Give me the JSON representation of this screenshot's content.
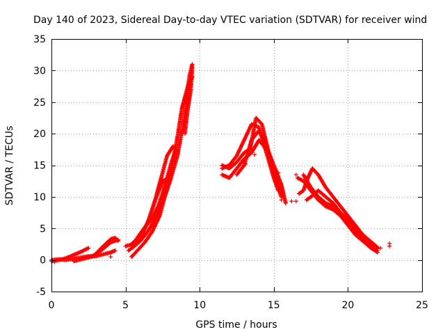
{
  "chart_data": {
    "type": "scatter",
    "title": "Day 140 of 2023, Sidereal Day-to-day VTEC variation (SDTVAR) for receiver wind",
    "xlabel": "GPS time / hours",
    "ylabel": "SDTVAR / TECUs",
    "xlim": [
      0,
      25
    ],
    "ylim": [
      -5,
      35
    ],
    "xticks": [
      "0",
      "5",
      "10",
      "15",
      "20",
      "25"
    ],
    "yticks": [
      "-5",
      "0",
      "5",
      "10",
      "15",
      "20",
      "25",
      "30",
      "35"
    ],
    "grid": true,
    "marker": "+",
    "series": [
      {
        "name": "SDTVAR",
        "color": "#ff0000",
        "tracks": [
          [
            [
              0.0,
              0.0
            ],
            [
              0.5,
              0.1
            ],
            [
              1.0,
              0.0
            ],
            [
              1.5,
              0.2
            ],
            [
              2.0,
              0.4
            ],
            [
              2.5,
              0.6
            ],
            [
              3.0,
              0.6
            ],
            [
              3.5,
              0.9
            ],
            [
              4.0,
              1.2
            ],
            [
              4.3,
              1.5
            ]
          ],
          [
            [
              0.0,
              -0.2
            ],
            [
              0.5,
              0.0
            ],
            [
              1.0,
              0.3
            ],
            [
              1.5,
              0.8
            ],
            [
              2.0,
              1.3
            ],
            [
              2.5,
              1.9
            ]
          ],
          [
            [
              1.5,
              -0.2
            ],
            [
              2.0,
              0.1
            ],
            [
              2.5,
              0.4
            ],
            [
              3.0,
              0.8
            ],
            [
              3.5,
              1.8
            ],
            [
              4.0,
              2.8
            ],
            [
              4.5,
              3.2
            ]
          ],
          [
            [
              2.7,
              0.5
            ],
            [
              3.0,
              1.0
            ],
            [
              3.5,
              2.2
            ],
            [
              4.0,
              3.3
            ],
            [
              4.3,
              3.5
            ],
            [
              4.5,
              3.0
            ]
          ],
          [
            [
              5.0,
              2.2
            ],
            [
              5.5,
              2.5
            ],
            [
              6.0,
              3.5
            ],
            [
              6.5,
              6.0
            ],
            [
              7.0,
              9.5
            ],
            [
              7.5,
              12.5
            ],
            [
              8.0,
              13.0
            ]
          ],
          [
            [
              5.2,
              1.5
            ],
            [
              5.5,
              2.0
            ],
            [
              6.0,
              3.0
            ],
            [
              6.5,
              4.5
            ],
            [
              7.0,
              6.5
            ],
            [
              7.5,
              9.0
            ],
            [
              8.0,
              12.5
            ],
            [
              8.5,
              16.5
            ],
            [
              9.0,
              23.0
            ],
            [
              9.3,
              29.0
            ],
            [
              9.5,
              31.0
            ]
          ],
          [
            [
              5.4,
              0.5
            ],
            [
              5.8,
              1.5
            ],
            [
              6.3,
              2.8
            ],
            [
              6.8,
              4.5
            ],
            [
              7.3,
              7.0
            ],
            [
              7.7,
              10.5
            ],
            [
              8.1,
              14.5
            ],
            [
              8.5,
              19.5
            ],
            [
              8.8,
              24.0
            ],
            [
              9.2,
              27.5
            ],
            [
              9.5,
              29.0
            ]
          ],
          [
            [
              5.8,
              3.0
            ],
            [
              6.2,
              4.5
            ],
            [
              6.6,
              6.5
            ],
            [
              7.0,
              9.5
            ],
            [
              7.4,
              13.0
            ],
            [
              7.8,
              16.5
            ],
            [
              8.2,
              18.0
            ]
          ],
          [
            [
              5.4,
              2.5
            ],
            [
              5.7,
              3.2
            ],
            [
              6.0,
              4.2
            ],
            [
              6.3,
              5.2
            ],
            [
              6.6,
              6.0
            ],
            [
              6.9,
              7.0
            ],
            [
              7.2,
              8.5
            ],
            [
              7.5,
              10.5
            ],
            [
              7.8,
              13.0
            ],
            [
              8.1,
              15.5
            ],
            [
              8.4,
              17.5
            ]
          ],
          [
            [
              9.0,
              20.0
            ],
            [
              9.2,
              24.0
            ],
            [
              9.4,
              27.0
            ],
            [
              9.5,
              30.5
            ]
          ],
          [
            [
              11.5,
              13.5
            ],
            [
              12.0,
              13.0
            ],
            [
              12.5,
              14.5
            ],
            [
              13.0,
              16.0
            ],
            [
              13.5,
              17.0
            ],
            [
              14.0,
              19.0
            ],
            [
              14.5,
              17.5
            ],
            [
              15.0,
              13.5
            ],
            [
              15.5,
              10.0
            ]
          ],
          [
            [
              11.5,
              14.5
            ],
            [
              12.0,
              15.0
            ],
            [
              12.5,
              16.5
            ],
            [
              13.0,
              19.0
            ],
            [
              13.5,
              21.5
            ],
            [
              14.0,
              21.0
            ],
            [
              14.5,
              17.0
            ],
            [
              15.0,
              13.0
            ],
            [
              15.3,
              11.0
            ]
          ],
          [
            [
              11.5,
              15.0
            ],
            [
              12.0,
              14.5
            ],
            [
              12.5,
              15.5
            ],
            [
              13.0,
              17.0
            ],
            [
              13.4,
              17.5
            ],
            [
              13.8,
              22.5
            ],
            [
              14.2,
              21.5
            ],
            [
              14.6,
              17.5
            ],
            [
              15.2,
              12.5
            ],
            [
              15.6,
              10.0
            ]
          ],
          [
            [
              12.5,
              13.5
            ],
            [
              13.0,
              15.0
            ],
            [
              13.5,
              19.0
            ],
            [
              14.0,
              20.5
            ],
            [
              14.5,
              18.0
            ],
            [
              15.0,
              15.0
            ],
            [
              15.5,
              12.0
            ],
            [
              15.8,
              9.0
            ]
          ],
          [
            [
              16.6,
              13.0
            ],
            [
              17.0,
              12.5
            ],
            [
              17.5,
              11.0
            ],
            [
              18.0,
              9.5
            ],
            [
              18.5,
              8.5
            ],
            [
              19.0,
              8.0
            ],
            [
              19.5,
              7.0
            ],
            [
              20.0,
              5.5
            ],
            [
              20.5,
              4.0
            ],
            [
              21.0,
              3.0
            ],
            [
              21.5,
              2.0
            ],
            [
              22.0,
              1.5
            ]
          ],
          [
            [
              16.7,
              10.5
            ],
            [
              17.0,
              11.0
            ],
            [
              17.3,
              13.0
            ],
            [
              17.6,
              14.5
            ],
            [
              18.0,
              13.5
            ],
            [
              18.5,
              11.5
            ],
            [
              19.0,
              10.0
            ],
            [
              19.5,
              8.5
            ],
            [
              20.0,
              7.0
            ],
            [
              20.5,
              5.5
            ],
            [
              21.0,
              4.0
            ],
            [
              21.5,
              3.0
            ],
            [
              22.0,
              2.0
            ]
          ],
          [
            [
              17.0,
              13.5
            ],
            [
              17.5,
              11.5
            ],
            [
              18.0,
              10.0
            ],
            [
              18.5,
              9.0
            ],
            [
              19.0,
              8.5
            ],
            [
              19.5,
              7.5
            ],
            [
              20.0,
              6.0
            ],
            [
              20.5,
              4.5
            ],
            [
              21.0,
              3.5
            ],
            [
              21.5,
              2.0
            ],
            [
              22.0,
              1.2
            ]
          ],
          [
            [
              17.2,
              9.5
            ],
            [
              17.5,
              10.0
            ],
            [
              18.0,
              11.0
            ],
            [
              18.5,
              10.0
            ],
            [
              19.0,
              9.0
            ],
            [
              19.5,
              7.5
            ],
            [
              20.0,
              6.5
            ],
            [
              20.5,
              5.0
            ],
            [
              21.0,
              3.5
            ],
            [
              21.5,
              2.5
            ],
            [
              22.0,
              2.0
            ]
          ]
        ],
        "isolated_points": [
          [
            15.5,
            9.5
          ],
          [
            15.8,
            9.0
          ],
          [
            16.2,
            9.3
          ],
          [
            16.5,
            9.3
          ],
          [
            15.1,
            14.0
          ],
          [
            15.3,
            13.8
          ],
          [
            13.1,
            15.2
          ],
          [
            13.7,
            16.7
          ],
          [
            22.0,
            1.8
          ],
          [
            22.2,
            1.9
          ],
          [
            22.8,
            2.2
          ],
          [
            22.8,
            2.6
          ],
          [
            16.5,
            13.5
          ],
          [
            20.5,
            4.8
          ],
          [
            4.0,
            0.5
          ],
          [
            4.3,
            3.2
          ],
          [
            0.2,
            -0.3
          ]
        ]
      }
    ]
  }
}
